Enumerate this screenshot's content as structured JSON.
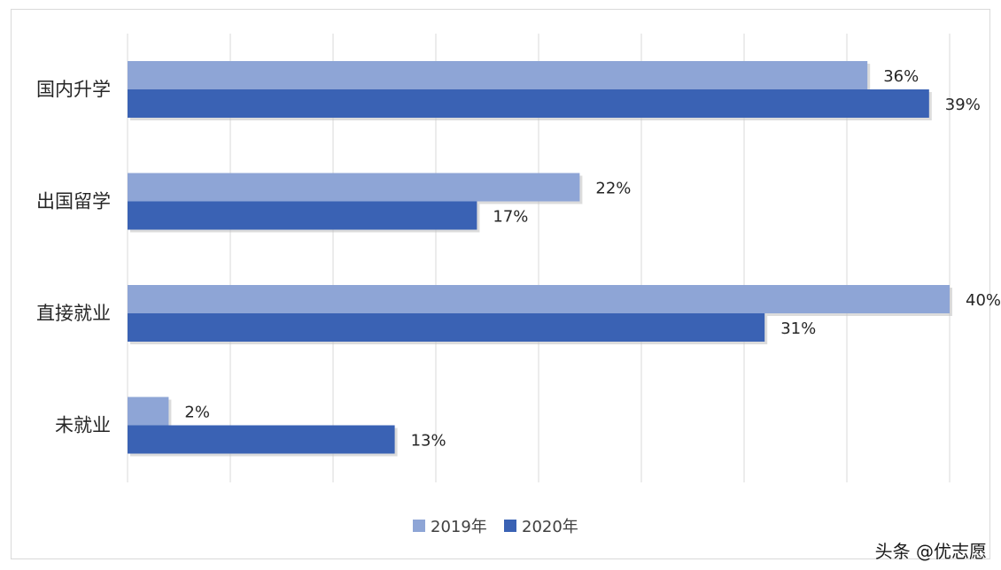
{
  "chart_data": {
    "type": "bar",
    "orientation": "horizontal",
    "categories": [
      "国内升学",
      "出国留学",
      "直接就业",
      "未就业"
    ],
    "series": [
      {
        "name": "2019年",
        "values": [
          36,
          22,
          40,
          2
        ],
        "color": "#8ea5d6"
      },
      {
        "name": "2020年",
        "values": [
          39,
          17,
          31,
          13
        ],
        "color": "#3a62b4"
      }
    ],
    "value_suffix": "%",
    "xlim": [
      0,
      45
    ],
    "grid": true,
    "legend": "bottom"
  },
  "credit": "头条 @优志愿"
}
